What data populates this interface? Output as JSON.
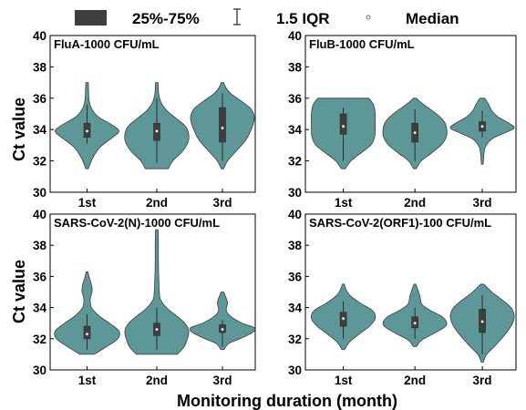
{
  "legend": {
    "box_label": "25%-75%",
    "range_label": "1.5 IQR",
    "median_label": "Median"
  },
  "y_axis_title": "Ct value",
  "x_axis_title": "Monitoring duration (month)",
  "colors": {
    "violin_fill": "#5e9797",
    "box_fill": "#3e3e3e",
    "median_dot": "#ffffff"
  },
  "chart_data": [
    {
      "type": "violin",
      "title": "FluA-1000 CFU/mL",
      "ylabel": "Ct value",
      "ylim": [
        30,
        40
      ],
      "yticks": [
        30,
        32,
        34,
        36,
        38,
        40
      ],
      "categories": [
        "1st",
        "2nd",
        "3rd"
      ],
      "distributions": [
        {
          "min": 31.5,
          "max": 37.0,
          "q1": 33.5,
          "median": 33.9,
          "q3": 34.4,
          "whisker_low": 33.1,
          "whisker_high": 35.6,
          "profile": [
            [
              31.5,
              0.04
            ],
            [
              32.2,
              0.18
            ],
            [
              32.9,
              0.42
            ],
            [
              33.5,
              0.8
            ],
            [
              33.9,
              1.0
            ],
            [
              34.3,
              0.78
            ],
            [
              34.8,
              0.36
            ],
            [
              35.3,
              0.15
            ],
            [
              35.8,
              0.07
            ],
            [
              36.3,
              0.05
            ],
            [
              37.0,
              0.04
            ]
          ]
        },
        {
          "min": 31.5,
          "max": 37.0,
          "q1": 33.3,
          "median": 33.9,
          "q3": 34.4,
          "whisker_low": 31.9,
          "whisker_high": 36.0,
          "profile": [
            [
              31.5,
              0.36
            ],
            [
              32.0,
              0.5
            ],
            [
              32.6,
              0.8
            ],
            [
              33.2,
              0.98
            ],
            [
              33.7,
              1.0
            ],
            [
              34.2,
              0.9
            ],
            [
              34.7,
              0.62
            ],
            [
              35.2,
              0.32
            ],
            [
              35.7,
              0.14
            ],
            [
              36.3,
              0.06
            ],
            [
              37.0,
              0.04
            ]
          ]
        },
        {
          "min": 31.5,
          "max": 37.0,
          "q1": 33.2,
          "median": 34.1,
          "q3": 35.4,
          "whisker_low": 32.0,
          "whisker_high": 36.3,
          "profile": [
            [
              31.5,
              0.04
            ],
            [
              32.0,
              0.16
            ],
            [
              32.6,
              0.42
            ],
            [
              33.3,
              0.72
            ],
            [
              34.0,
              0.9
            ],
            [
              34.7,
              1.0
            ],
            [
              35.3,
              0.9
            ],
            [
              35.8,
              0.6
            ],
            [
              36.3,
              0.26
            ],
            [
              36.7,
              0.1
            ],
            [
              37.0,
              0.04
            ]
          ]
        }
      ]
    },
    {
      "type": "violin",
      "title": "FluB-1000 CFU/mL",
      "ylabel": "Ct value",
      "ylim": [
        30,
        40
      ],
      "yticks": [
        30,
        32,
        34,
        36,
        38,
        40
      ],
      "categories": [
        "1st",
        "2nd",
        "3rd"
      ],
      "distributions": [
        {
          "min": 31.5,
          "max": 36.0,
          "q1": 33.7,
          "median": 34.2,
          "q3": 35.0,
          "whisker_low": 32.0,
          "whisker_high": 35.4,
          "profile": [
            [
              31.5,
              0.06
            ],
            [
              32.0,
              0.24
            ],
            [
              32.5,
              0.55
            ],
            [
              33.0,
              0.86
            ],
            [
              33.5,
              0.98
            ],
            [
              34.0,
              1.0
            ],
            [
              34.5,
              1.0
            ],
            [
              35.0,
              1.0
            ],
            [
              35.5,
              0.96
            ],
            [
              35.8,
              0.88
            ],
            [
              36.0,
              0.8
            ]
          ]
        },
        {
          "min": 31.5,
          "max": 36.0,
          "q1": 33.2,
          "median": 33.8,
          "q3": 34.4,
          "whisker_low": 32.0,
          "whisker_high": 35.3,
          "profile": [
            [
              31.5,
              0.04
            ],
            [
              32.0,
              0.2
            ],
            [
              32.5,
              0.52
            ],
            [
              33.0,
              0.82
            ],
            [
              33.5,
              0.98
            ],
            [
              34.0,
              1.0
            ],
            [
              34.5,
              0.92
            ],
            [
              35.0,
              0.68
            ],
            [
              35.5,
              0.34
            ],
            [
              35.8,
              0.15
            ],
            [
              36.0,
              0.05
            ]
          ]
        },
        {
          "min": 31.8,
          "max": 36.0,
          "q1": 33.9,
          "median": 34.2,
          "q3": 34.5,
          "whisker_low": 33.5,
          "whisker_high": 35.2,
          "profile": [
            [
              31.8,
              0.03
            ],
            [
              32.4,
              0.05
            ],
            [
              32.9,
              0.1
            ],
            [
              33.4,
              0.3
            ],
            [
              33.8,
              0.72
            ],
            [
              34.1,
              1.0
            ],
            [
              34.4,
              0.84
            ],
            [
              34.8,
              0.5
            ],
            [
              35.2,
              0.3
            ],
            [
              35.6,
              0.2
            ],
            [
              36.0,
              0.08
            ]
          ]
        }
      ]
    },
    {
      "type": "violin",
      "title": "SARS-CoV-2(N)-1000 CFU/mL",
      "ylabel": "Ct value",
      "ylim": [
        30,
        40
      ],
      "yticks": [
        30,
        32,
        34,
        36,
        38,
        40
      ],
      "categories": [
        "1st",
        "2nd",
        "3rd"
      ],
      "distributions": [
        {
          "min": 31.0,
          "max": 36.3,
          "q1": 32.0,
          "median": 32.3,
          "q3": 32.8,
          "whisker_low": 31.3,
          "whisker_high": 33.6,
          "profile": [
            [
              31.0,
              0.22
            ],
            [
              31.5,
              0.62
            ],
            [
              32.0,
              0.96
            ],
            [
              32.5,
              1.0
            ],
            [
              33.0,
              0.7
            ],
            [
              33.5,
              0.36
            ],
            [
              34.0,
              0.14
            ],
            [
              34.5,
              0.1
            ],
            [
              35.1,
              0.16
            ],
            [
              35.6,
              0.12
            ],
            [
              36.0,
              0.06
            ],
            [
              36.3,
              0.03
            ]
          ]
        },
        {
          "min": 31.0,
          "max": 39.0,
          "q1": 32.2,
          "median": 32.6,
          "q3": 33.0,
          "whisker_low": 31.3,
          "whisker_high": 34.0,
          "profile": [
            [
              31.0,
              0.64
            ],
            [
              31.5,
              0.86
            ],
            [
              32.0,
              0.96
            ],
            [
              32.5,
              1.0
            ],
            [
              33.0,
              0.88
            ],
            [
              33.5,
              0.6
            ],
            [
              34.0,
              0.3
            ],
            [
              34.5,
              0.12
            ],
            [
              35.0,
              0.08
            ],
            [
              36.0,
              0.06
            ],
            [
              37.0,
              0.05
            ],
            [
              38.0,
              0.05
            ],
            [
              39.0,
              0.04
            ]
          ]
        },
        {
          "min": 31.3,
          "max": 35.0,
          "q1": 32.4,
          "median": 32.6,
          "q3": 32.9,
          "whisker_low": 31.5,
          "whisker_high": 33.2,
          "profile": [
            [
              31.3,
              0.05
            ],
            [
              31.7,
              0.2
            ],
            [
              32.0,
              0.55
            ],
            [
              32.4,
              0.94
            ],
            [
              32.7,
              1.0
            ],
            [
              33.0,
              0.62
            ],
            [
              33.4,
              0.28
            ],
            [
              33.8,
              0.12
            ],
            [
              34.3,
              0.16
            ],
            [
              34.7,
              0.1
            ],
            [
              35.0,
              0.04
            ]
          ]
        }
      ]
    },
    {
      "type": "violin",
      "title": "SARS-CoV-2(ORF1)-100 CFU/mL",
      "ylabel": "Ct value",
      "ylim": [
        30,
        40
      ],
      "yticks": [
        30,
        32,
        34,
        36,
        38,
        40
      ],
      "categories": [
        "1st",
        "2nd",
        "3rd"
      ],
      "distributions": [
        {
          "min": 31.3,
          "max": 35.5,
          "q1": 32.8,
          "median": 33.3,
          "q3": 33.7,
          "whisker_low": 32.0,
          "whisker_high": 34.4,
          "profile": [
            [
              31.3,
              0.04
            ],
            [
              31.8,
              0.2
            ],
            [
              32.3,
              0.5
            ],
            [
              32.8,
              0.82
            ],
            [
              33.3,
              1.0
            ],
            [
              33.8,
              0.92
            ],
            [
              34.3,
              0.52
            ],
            [
              34.8,
              0.2
            ],
            [
              35.2,
              0.08
            ],
            [
              35.5,
              0.03
            ]
          ]
        },
        {
          "min": 31.5,
          "max": 35.5,
          "q1": 32.7,
          "median": 33.0,
          "q3": 33.4,
          "whisker_low": 32.0,
          "whisker_high": 34.0,
          "profile": [
            [
              31.5,
              0.05
            ],
            [
              31.9,
              0.2
            ],
            [
              32.3,
              0.56
            ],
            [
              32.7,
              0.9
            ],
            [
              33.0,
              1.0
            ],
            [
              33.4,
              0.86
            ],
            [
              33.8,
              0.5
            ],
            [
              34.2,
              0.22
            ],
            [
              34.7,
              0.16
            ],
            [
              35.1,
              0.1
            ],
            [
              35.5,
              0.03
            ]
          ]
        },
        {
          "min": 30.5,
          "max": 35.5,
          "q1": 32.4,
          "median": 33.1,
          "q3": 33.9,
          "whisker_low": 31.0,
          "whisker_high": 34.8,
          "profile": [
            [
              30.5,
              0.03
            ],
            [
              31.0,
              0.14
            ],
            [
              31.5,
              0.38
            ],
            [
              32.0,
              0.6
            ],
            [
              32.5,
              0.8
            ],
            [
              33.0,
              0.95
            ],
            [
              33.5,
              1.0
            ],
            [
              34.0,
              0.9
            ],
            [
              34.5,
              0.62
            ],
            [
              35.0,
              0.3
            ],
            [
              35.5,
              0.05
            ]
          ]
        }
      ]
    }
  ]
}
